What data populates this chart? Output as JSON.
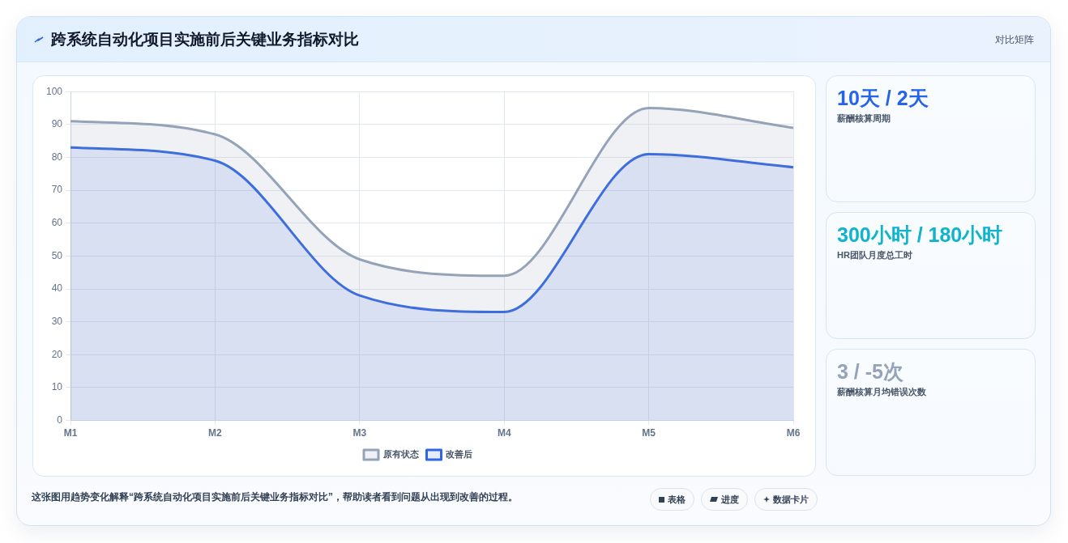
{
  "chart_data": [
    {
      "type": "area",
      "title": "跨系统自动化项目实施前后关键业务指标对比",
      "categories": [
        "M1",
        "M2",
        "M3",
        "M4",
        "M5",
        "M6"
      ],
      "series": [
        {
          "name": "原有状态",
          "color": "#94a3b8",
          "values": [
            91,
            87,
            49,
            44,
            95,
            89
          ]
        },
        {
          "name": "改善后",
          "color": "#2f66e4",
          "values": [
            83,
            79,
            38,
            33,
            81,
            77
          ]
        }
      ],
      "ylim": [
        0,
        100
      ],
      "yticks": [
        0,
        10,
        20,
        30,
        40,
        50,
        60,
        70,
        80,
        90,
        100
      ],
      "grid": true,
      "legend": "bottom",
      "marker": "none",
      "annotations": [
        "对比矩阵",
        "这张图用趋势变化解释“跨系统自动化项目实施前后关键业务指标对比”，帮助读者看到问题从出现到改善的过程。",
        "表格",
        "进度",
        "数据卡片"
      ]
    },
    {
      "type": "other",
      "title": "10天 / 2天",
      "subtitle": "薪酬核算周期"
    },
    {
      "type": "other",
      "title": "300小时 / 180小时",
      "subtitle": "HR团队月度总工时"
    },
    {
      "type": "other",
      "title": "3 / -5次",
      "subtitle": "薪酬核算月均错误次数"
    }
  ]
}
